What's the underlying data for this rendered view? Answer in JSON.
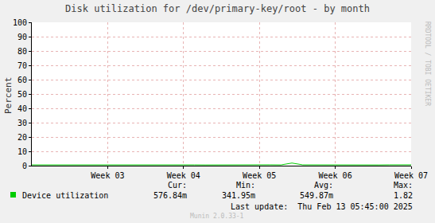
{
  "chart_data": {
    "type": "line",
    "title": "Disk utilization for /dev/primary-key/root - by month",
    "y_label": "Percent",
    "categories": [
      null,
      null,
      null,
      null,
      null,
      null,
      null,
      "Week 03",
      null,
      null,
      null,
      null,
      null,
      null,
      "Week 04",
      null,
      null,
      null,
      null,
      null,
      null,
      "Week 05",
      null,
      null,
      null,
      null,
      null,
      null,
      "Week 06",
      null,
      null,
      null,
      null,
      null,
      null,
      "Week 07"
    ],
    "series": [
      {
        "name": "Device utilization",
        "color": "#00cc00",
        "values": [
          0.52,
          0.55,
          0.58,
          0.5,
          0.54,
          0.61,
          0.49,
          0.53,
          0.56,
          0.47,
          0.52,
          0.6,
          0.55,
          0.51,
          0.58,
          0.54,
          0.5,
          0.57,
          0.53,
          0.62,
          0.48,
          0.55,
          0.59,
          0.52,
          1.82,
          0.56,
          0.51,
          0.54,
          0.34,
          0.58,
          0.53,
          0.55,
          0.5,
          0.57,
          0.54,
          0.58
        ]
      }
    ],
    "ylim": [
      0,
      100
    ],
    "yticks": [
      0,
      10,
      20,
      30,
      40,
      50,
      60,
      70,
      80,
      90,
      100
    ],
    "grid": true,
    "summary": {
      "labels": [
        "Cur:",
        "Min:",
        "Avg:",
        "Max:"
      ],
      "values": [
        "576.84m",
        "341.95m",
        "549.87m",
        "1.82"
      ]
    },
    "last_update": "Last update:  Thu Feb 13 05:45:00 2025",
    "footer": "Munin 2.0.33-1",
    "watermark": "RRDTOOL / TOBI OETIKER"
  }
}
